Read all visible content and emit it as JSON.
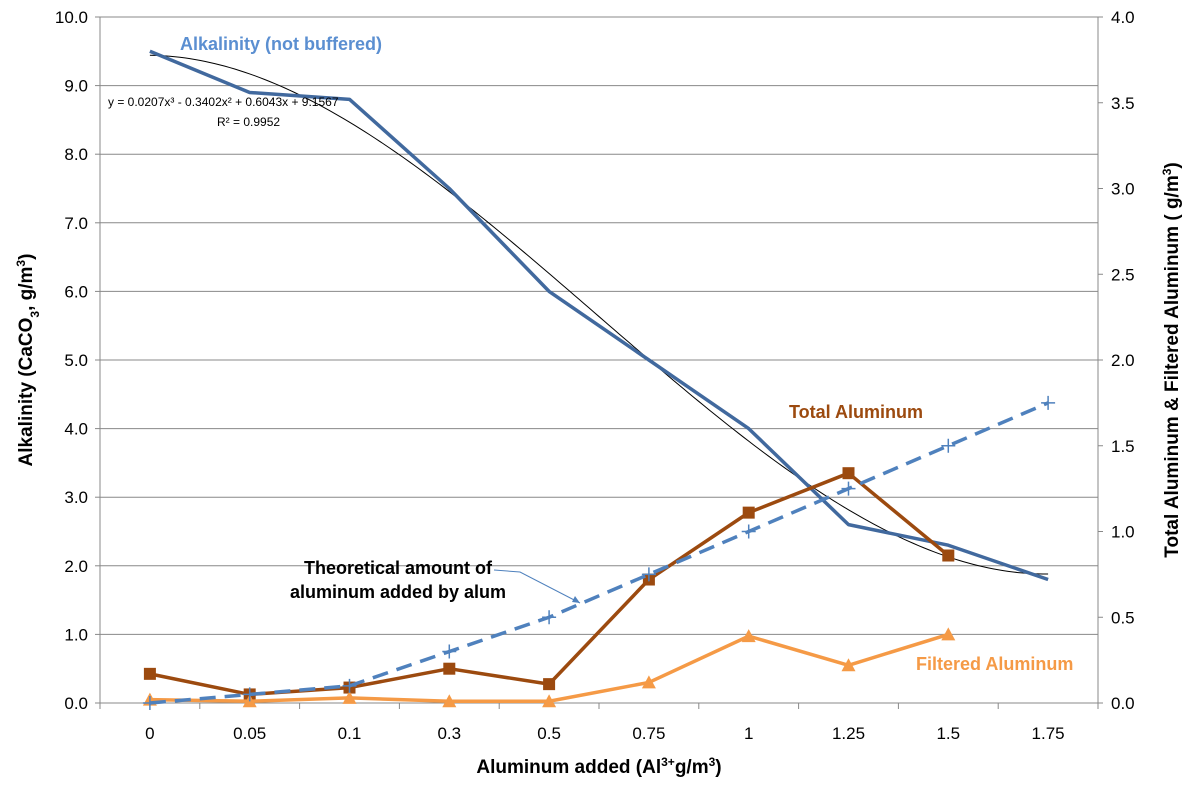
{
  "chart_data": {
    "type": "line",
    "categories": [
      "0",
      "0.05",
      "0.1",
      "0.3",
      "0.5",
      "0.75",
      "1",
      "1.25",
      "1.5",
      "1.75"
    ],
    "xlabel": "Aluminum added (Al",
    "xlabel_sup": "3+",
    "xlabel_tail": "g/m",
    "xlabel_tail_sup": "3",
    "xlabel_end": ")",
    "ylabel_left": "Alkalinity (CaCO",
    "ylabel_left_sub": "3",
    "ylabel_left_mid": ", g/m",
    "ylabel_left_sup": "3",
    "ylabel_left_end": ")",
    "ylabel_right": "Total Aluminum & Filtered Aluminum ( g/m",
    "ylabel_right_sup": "3",
    "ylabel_right_end": ")",
    "ylim_left": [
      0,
      10
    ],
    "ylim_right": [
      0,
      4
    ],
    "y_ticks_left": [
      "0.0",
      "1.0",
      "2.0",
      "3.0",
      "4.0",
      "5.0",
      "6.0",
      "7.0",
      "8.0",
      "9.0",
      "10.0"
    ],
    "y_ticks_right": [
      "0.0",
      "0.5",
      "1.0",
      "1.5",
      "2.0",
      "2.5",
      "3.0",
      "3.5",
      "4.0"
    ],
    "grid": true,
    "series": [
      {
        "name": "Alkalinity (not buffered)",
        "axis": "left",
        "color": "#41699e",
        "values": [
          9.5,
          8.9,
          8.8,
          7.5,
          6.0,
          5.0,
          4.0,
          2.6,
          2.3,
          1.8
        ]
      },
      {
        "name": "Total Aluminum",
        "axis": "right",
        "color": "#9c4a0f",
        "marker": "square",
        "values": [
          0.17,
          0.05,
          0.09,
          0.2,
          0.11,
          0.72,
          1.11,
          1.34,
          0.86,
          null
        ]
      },
      {
        "name": "Filtered Aluminum",
        "axis": "right",
        "color": "#f59a46",
        "marker": "triangle",
        "values": [
          0.02,
          0.01,
          0.03,
          0.01,
          0.01,
          0.12,
          0.39,
          0.22,
          0.4,
          null
        ]
      },
      {
        "name": "Theoretical amount of aluminum added by alum",
        "axis": "right",
        "color": "#4f81bd",
        "marker": "plus",
        "dashed": true,
        "values": [
          0.0,
          0.05,
          0.1,
          0.3,
          0.5,
          0.75,
          1.0,
          1.25,
          1.5,
          1.75
        ]
      }
    ],
    "trendline": {
      "equation": "y = 0.0207x³ - 0.3402x² + 0.6043x + 9.1567",
      "r2": "R² = 0.9952",
      "coefficients": [
        0.0207,
        -0.3402,
        0.6043,
        9.1567
      ]
    },
    "annotations": {
      "alkalinity": "Alkalinity (not buffered)",
      "total": "Total Aluminum",
      "filtered": "Filtered Aluminum",
      "theoretical_line1": "Theoretical amount of",
      "theoretical_line2": "aluminum added by alum"
    }
  }
}
